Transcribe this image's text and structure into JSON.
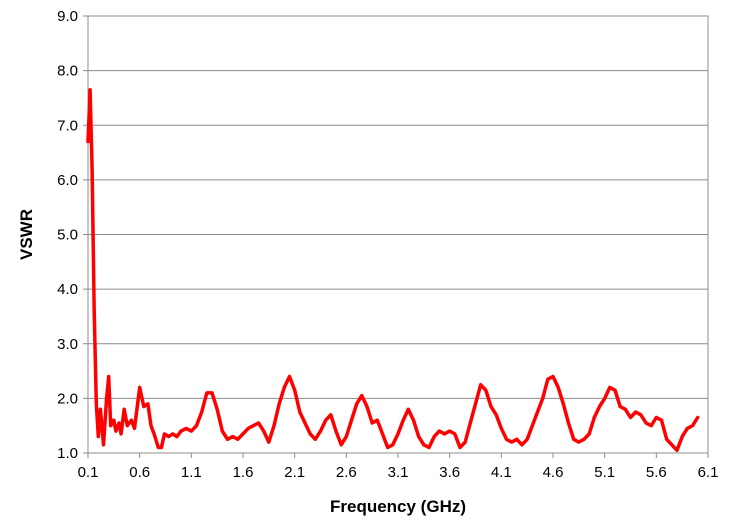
{
  "chart_data": {
    "type": "line",
    "title": "",
    "xlabel": "Frequency (GHz)",
    "ylabel": "VSWR",
    "xlim": [
      0.1,
      6.1
    ],
    "ylim": [
      1.0,
      9.0
    ],
    "x_ticks": [
      "0.1",
      "0.6",
      "1.1",
      "1.6",
      "2.1",
      "2.6",
      "3.1",
      "3.6",
      "4.1",
      "4.6",
      "5.1",
      "5.6",
      "6.1"
    ],
    "y_ticks": [
      "1.0",
      "2.0",
      "3.0",
      "4.0",
      "5.0",
      "6.0",
      "7.0",
      "8.0",
      "9.0"
    ],
    "grid": "horizontal",
    "legend": "none",
    "colors": {
      "line": "#ff0000",
      "grid": "#8c8c8c",
      "frame": "#8c8c8c"
    },
    "series": [
      {
        "x": [
          0.1,
          0.12,
          0.14,
          0.16,
          0.18,
          0.2,
          0.22,
          0.25,
          0.28,
          0.3,
          0.32,
          0.35,
          0.37,
          0.4,
          0.42,
          0.45,
          0.48,
          0.52,
          0.55,
          0.6,
          0.64,
          0.68,
          0.71,
          0.74,
          0.78,
          0.81,
          0.84,
          0.88,
          0.92,
          0.96,
          1.0,
          1.05,
          1.1,
          1.15,
          1.2,
          1.25,
          1.3,
          1.35,
          1.4,
          1.45,
          1.5,
          1.55,
          1.6,
          1.65,
          1.7,
          1.75,
          1.8,
          1.85,
          1.9,
          1.95,
          2.0,
          2.05,
          2.1,
          2.15,
          2.2,
          2.25,
          2.3,
          2.35,
          2.4,
          2.45,
          2.5,
          2.55,
          2.6,
          2.65,
          2.7,
          2.75,
          2.8,
          2.85,
          2.9,
          2.95,
          3.0,
          3.05,
          3.1,
          3.15,
          3.2,
          3.25,
          3.3,
          3.35,
          3.4,
          3.45,
          3.5,
          3.55,
          3.6,
          3.65,
          3.7,
          3.75,
          3.8,
          3.85,
          3.9,
          3.95,
          4.0,
          4.05,
          4.1,
          4.15,
          4.2,
          4.25,
          4.3,
          4.35,
          4.4,
          4.45,
          4.5,
          4.55,
          4.6,
          4.65,
          4.7,
          4.75,
          4.8,
          4.85,
          4.9,
          4.95,
          5.0,
          5.05,
          5.1,
          5.15,
          5.2,
          5.25,
          5.3,
          5.35,
          5.4,
          5.45,
          5.5,
          5.55,
          5.6,
          5.65,
          5.7,
          5.75,
          5.8,
          5.85,
          5.9,
          5.95,
          6.0
        ],
        "y": [
          6.7,
          7.65,
          6.2,
          3.6,
          1.9,
          1.3,
          1.8,
          1.15,
          2.0,
          2.4,
          1.5,
          1.6,
          1.4,
          1.55,
          1.35,
          1.8,
          1.5,
          1.6,
          1.45,
          2.2,
          1.85,
          1.9,
          1.5,
          1.35,
          1.1,
          1.1,
          1.35,
          1.3,
          1.35,
          1.3,
          1.4,
          1.45,
          1.4,
          1.5,
          1.75,
          2.1,
          2.1,
          1.8,
          1.4,
          1.25,
          1.3,
          1.25,
          1.35,
          1.45,
          1.5,
          1.55,
          1.4,
          1.2,
          1.5,
          1.9,
          2.2,
          2.4,
          2.15,
          1.75,
          1.55,
          1.35,
          1.25,
          1.4,
          1.6,
          1.7,
          1.4,
          1.15,
          1.3,
          1.6,
          1.9,
          2.05,
          1.85,
          1.55,
          1.6,
          1.35,
          1.1,
          1.15,
          1.35,
          1.6,
          1.8,
          1.6,
          1.3,
          1.15,
          1.1,
          1.3,
          1.4,
          1.35,
          1.4,
          1.35,
          1.1,
          1.2,
          1.55,
          1.9,
          2.25,
          2.15,
          1.85,
          1.7,
          1.45,
          1.25,
          1.2,
          1.25,
          1.15,
          1.25,
          1.5,
          1.75,
          2.0,
          2.35,
          2.4,
          2.2,
          1.9,
          1.55,
          1.25,
          1.2,
          1.25,
          1.35,
          1.65,
          1.85,
          2.0,
          2.2,
          2.15,
          1.85,
          1.8,
          1.65,
          1.75,
          1.7,
          1.55,
          1.5,
          1.65,
          1.6,
          1.25,
          1.15,
          1.05,
          1.3,
          1.45,
          1.5,
          1.65
        ]
      }
    ]
  }
}
